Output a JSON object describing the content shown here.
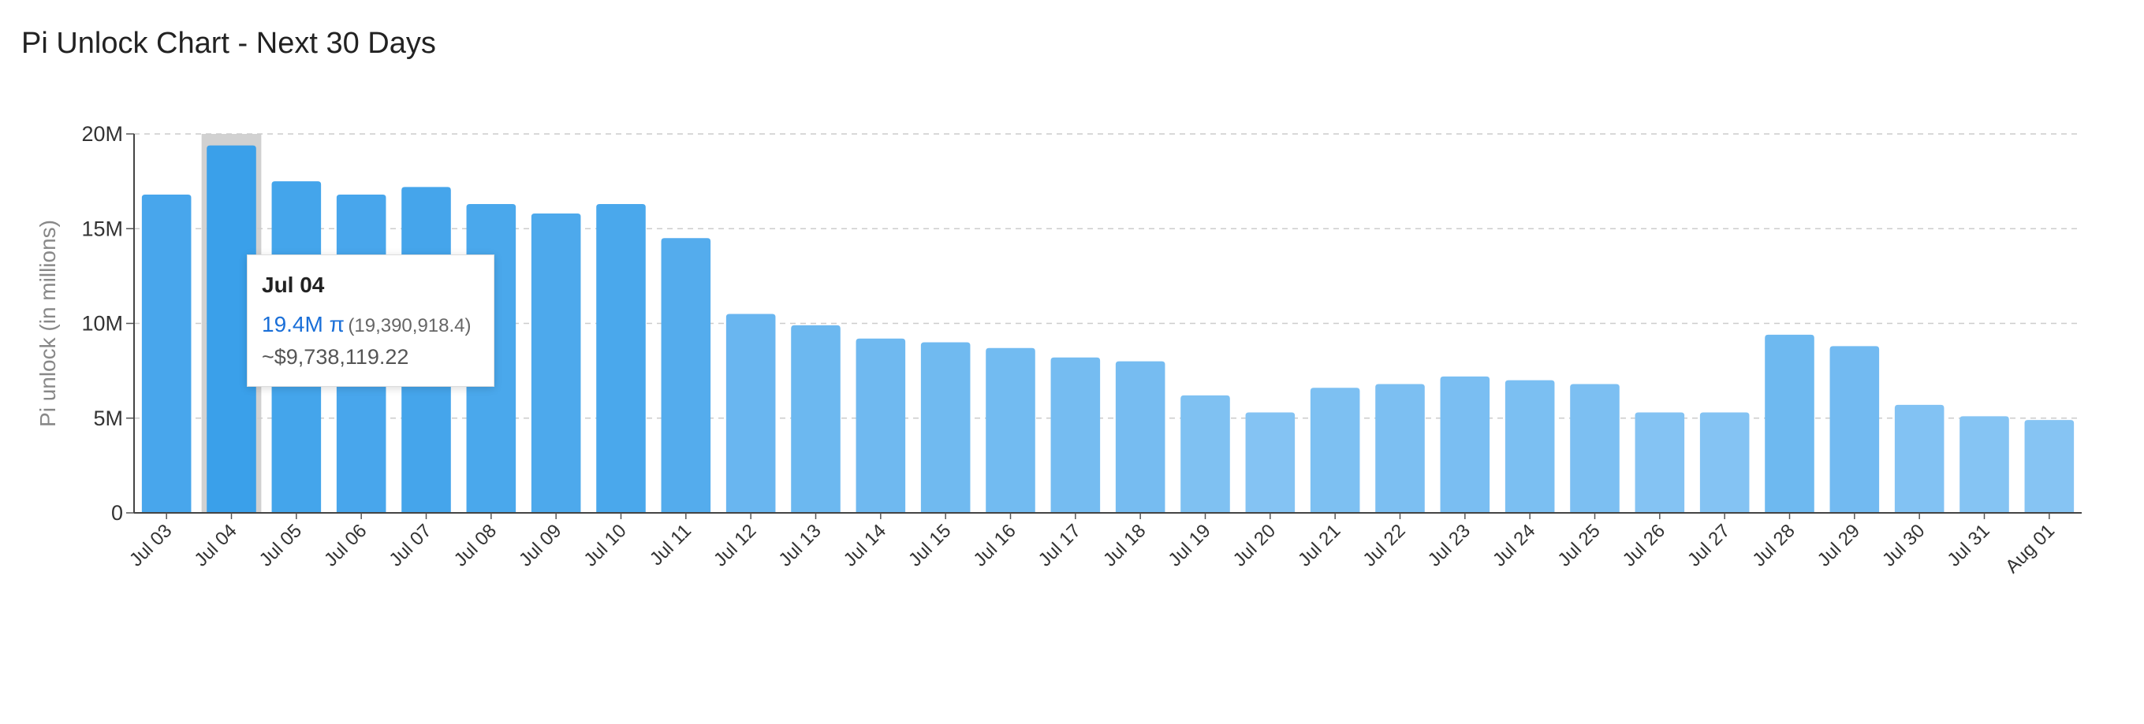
{
  "page": {
    "title": "Pi Unlock Chart - Next 30 Days"
  },
  "tooltip": {
    "date": "Jul 04",
    "amount_short": "19.4M π",
    "amount_full": "(19,390,918.4)",
    "usd": "~$9,738,119.22"
  },
  "chart_data": {
    "type": "bar",
    "title": "Pi Unlock Chart - Next 30 Days",
    "ylabel": "Pi unlock (in millions)",
    "ylim": [
      0,
      20
    ],
    "yticks": [
      "0",
      "5M",
      "10M",
      "15M",
      "20M"
    ],
    "grid": true,
    "highlighted": "Jul 04",
    "categories": [
      "Jul 03",
      "Jul 04",
      "Jul 05",
      "Jul 06",
      "Jul 07",
      "Jul 08",
      "Jul 09",
      "Jul 10",
      "Jul 11",
      "Jul 12",
      "Jul 13",
      "Jul 14",
      "Jul 15",
      "Jul 16",
      "Jul 17",
      "Jul 18",
      "Jul 19",
      "Jul 20",
      "Jul 21",
      "Jul 22",
      "Jul 23",
      "Jul 24",
      "Jul 25",
      "Jul 26",
      "Jul 27",
      "Jul 28",
      "Jul 29",
      "Jul 30",
      "Jul 31",
      "Aug 01"
    ],
    "values": [
      16.8,
      19.39,
      17.5,
      16.8,
      17.2,
      16.3,
      15.8,
      16.3,
      14.5,
      10.5,
      9.9,
      9.2,
      9.0,
      8.7,
      8.2,
      8.0,
      6.2,
      5.3,
      6.6,
      6.8,
      7.2,
      7.0,
      6.8,
      5.3,
      5.3,
      9.4,
      8.8,
      5.7,
      5.1,
      4.9
    ],
    "colors": {
      "high": "#3aa0ea",
      "low": "#86c4f3",
      "highlight_band": "#cccccc",
      "tooltip_accent": "#1a6fd8"
    }
  }
}
